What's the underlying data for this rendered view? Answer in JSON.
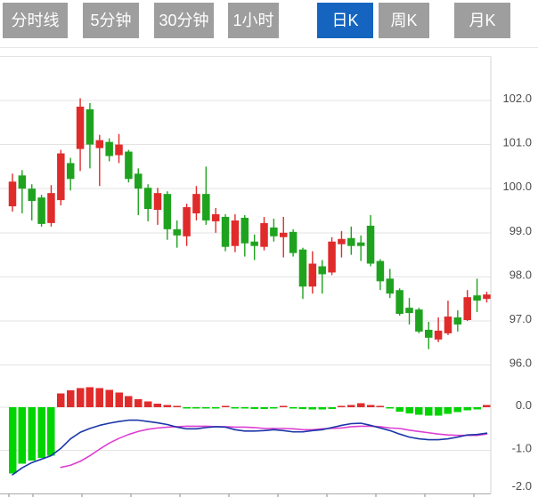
{
  "tabs": [
    {
      "label": "分时线",
      "active": false
    },
    {
      "label": "5分钟",
      "active": false
    },
    {
      "label": "30分钟",
      "active": false
    },
    {
      "label": "1小时",
      "active": false
    },
    {
      "label": "日K",
      "active": true
    },
    {
      "label": "周K",
      "active": false
    },
    {
      "label": "月K",
      "active": false
    }
  ],
  "colors": {
    "tab_inactive": "#9e9e9e",
    "tab_active": "#1565c0",
    "tab_text": "#ffffff",
    "candle_up": "#e02b2b",
    "candle_down": "#1fa31f",
    "hist_up": "#e02b2b",
    "hist_down": "#00d400",
    "dif_line": "#1a35a8",
    "dea_line": "#dd3fd3",
    "grid": "#e3e3e3",
    "axis_line": "#aaaaaa",
    "tick": "#8a8a8a",
    "axis_label": "#4d4d4d",
    "right_border": "#d5d5d5"
  },
  "chart_data": {
    "type": "candlestick+macd",
    "up_color_means": "close >= open (red)",
    "price_panel": {
      "grid": true,
      "ylim": [
        95.8,
        103.0
      ],
      "yticks": [
        {
          "label": "102.0",
          "value": 102.0
        },
        {
          "label": "101.0",
          "value": 101.0
        },
        {
          "label": "100.0",
          "value": 100.0
        },
        {
          "label": "99.0",
          "value": 99.0
        },
        {
          "label": "98.0",
          "value": 98.0
        },
        {
          "label": "97.0",
          "value": 97.0
        },
        {
          "label": "96.0",
          "value": 96.0
        }
      ],
      "unlabeled_grid_values": [
        103.0
      ]
    },
    "macd_panel": {
      "grid": true,
      "ylim": [
        -2.0,
        0.6
      ],
      "yticks": [
        {
          "label": "0.0",
          "value": 0.0
        },
        {
          "label": "-1.0",
          "value": -1.0
        },
        {
          "label": "-2.0",
          "value": -2.0
        }
      ]
    },
    "candles_format": "[open, close, high, low]",
    "candles": [
      [
        99.6,
        100.16,
        100.34,
        99.48
      ],
      [
        100.3,
        100.0,
        100.42,
        99.44
      ],
      [
        100.0,
        99.72,
        100.1,
        99.28
      ],
      [
        99.8,
        99.2,
        99.86,
        99.14
      ],
      [
        99.22,
        99.9,
        100.08,
        99.14
      ],
      [
        99.74,
        100.8,
        100.88,
        99.62
      ],
      [
        100.58,
        100.22,
        100.7,
        99.96
      ],
      [
        100.9,
        101.86,
        102.05,
        100.4
      ],
      [
        101.8,
        101.0,
        101.94,
        100.46
      ],
      [
        100.92,
        101.1,
        101.22,
        100.06
      ],
      [
        101.06,
        100.74,
        101.14,
        100.62
      ],
      [
        100.76,
        101.0,
        101.24,
        100.58
      ],
      [
        100.84,
        100.22,
        100.88,
        100.14
      ],
      [
        100.34,
        100.0,
        100.46,
        99.4
      ],
      [
        100.02,
        99.54,
        100.1,
        99.26
      ],
      [
        99.52,
        99.9,
        100.02,
        99.18
      ],
      [
        99.88,
        99.08,
        99.94,
        98.84
      ],
      [
        99.08,
        98.94,
        99.28,
        98.66
      ],
      [
        98.92,
        99.58,
        99.66,
        98.7
      ],
      [
        99.44,
        99.88,
        100.06,
        99.28
      ],
      [
        99.88,
        99.28,
        100.5,
        99.18
      ],
      [
        99.26,
        99.42,
        99.56,
        99.0
      ],
      [
        99.36,
        98.68,
        99.42,
        98.58
      ],
      [
        98.7,
        99.28,
        99.42,
        98.56
      ],
      [
        99.34,
        98.76,
        99.4,
        98.46
      ],
      [
        98.8,
        98.7,
        98.96,
        98.38
      ],
      [
        98.68,
        99.22,
        99.36,
        98.6
      ],
      [
        99.12,
        98.92,
        99.32,
        98.8
      ],
      [
        98.9,
        99.0,
        99.36,
        98.44
      ],
      [
        99.02,
        98.54,
        99.08,
        98.46
      ],
      [
        98.62,
        97.78,
        98.66,
        97.5
      ],
      [
        97.78,
        98.3,
        98.58,
        97.62
      ],
      [
        98.24,
        98.06,
        98.38,
        97.62
      ],
      [
        98.1,
        98.8,
        98.9,
        98.04
      ],
      [
        98.74,
        98.86,
        99.04,
        98.44
      ],
      [
        98.88,
        98.7,
        99.14,
        98.5
      ],
      [
        98.78,
        98.7,
        98.94,
        98.36
      ],
      [
        99.16,
        98.3,
        99.4,
        98.24
      ],
      [
        98.36,
        97.9,
        98.4,
        97.7
      ],
      [
        97.96,
        97.62,
        98.18,
        97.52
      ],
      [
        97.7,
        97.16,
        97.74,
        97.12
      ],
      [
        97.3,
        97.18,
        97.52,
        96.92
      ],
      [
        97.26,
        96.76,
        97.3,
        96.72
      ],
      [
        96.8,
        96.62,
        96.98,
        96.36
      ],
      [
        96.58,
        96.78,
        97.08,
        96.52
      ],
      [
        96.72,
        97.1,
        97.46,
        96.68
      ],
      [
        97.08,
        96.92,
        97.24,
        96.76
      ],
      [
        97.02,
        97.54,
        97.7,
        97.0
      ],
      [
        97.58,
        97.46,
        97.96,
        97.2
      ],
      [
        97.5,
        97.6,
        97.66,
        97.42
      ]
    ],
    "macd": {
      "histogram": [
        -1.53,
        -1.3,
        -1.23,
        -1.17,
        -1.12,
        0.32,
        0.39,
        0.44,
        0.46,
        0.44,
        0.4,
        0.34,
        0.26,
        0.18,
        0.13,
        0.08,
        0.05,
        0.02,
        -0.02,
        -0.02,
        -0.03,
        -0.02,
        0.01,
        -0.01,
        -0.03,
        -0.04,
        -0.04,
        -0.03,
        0.01,
        -0.01,
        -0.04,
        -0.05,
        -0.05,
        -0.04,
        0.03,
        0.05,
        0.09,
        0.05,
        0.02,
        -0.03,
        -0.1,
        -0.14,
        -0.17,
        -0.2,
        -0.19,
        -0.15,
        -0.11,
        -0.07,
        -0.05,
        0.05
      ],
      "dif": [
        -1.56,
        -1.4,
        -1.28,
        -1.2,
        -1.12,
        -0.95,
        -0.73,
        -0.58,
        -0.49,
        -0.42,
        -0.37,
        -0.33,
        -0.3,
        -0.3,
        -0.33,
        -0.36,
        -0.4,
        -0.46,
        -0.5,
        -0.5,
        -0.47,
        -0.45,
        -0.46,
        -0.52,
        -0.55,
        -0.55,
        -0.54,
        -0.52,
        -0.54,
        -0.57,
        -0.57,
        -0.54,
        -0.52,
        -0.47,
        -0.42,
        -0.38,
        -0.37,
        -0.42,
        -0.48,
        -0.54,
        -0.62,
        -0.69,
        -0.73,
        -0.75,
        -0.75,
        -0.73,
        -0.69,
        -0.64,
        -0.63,
        -0.6
      ],
      "dea": [
        null,
        null,
        null,
        null,
        null,
        -1.39,
        -1.34,
        -1.25,
        -1.12,
        -0.97,
        -0.83,
        -0.72,
        -0.63,
        -0.56,
        -0.51,
        -0.48,
        -0.46,
        -0.45,
        -0.44,
        -0.44,
        -0.44,
        -0.45,
        -0.45,
        -0.46,
        -0.46,
        -0.47,
        -0.49,
        -0.49,
        -0.49,
        -0.5,
        -0.52,
        -0.52,
        -0.5,
        -0.49,
        -0.48,
        -0.45,
        -0.44,
        -0.44,
        -0.45,
        -0.48,
        -0.49,
        -0.53,
        -0.56,
        -0.59,
        -0.62,
        -0.64,
        -0.65,
        -0.65,
        -0.65,
        -0.62
      ]
    }
  }
}
